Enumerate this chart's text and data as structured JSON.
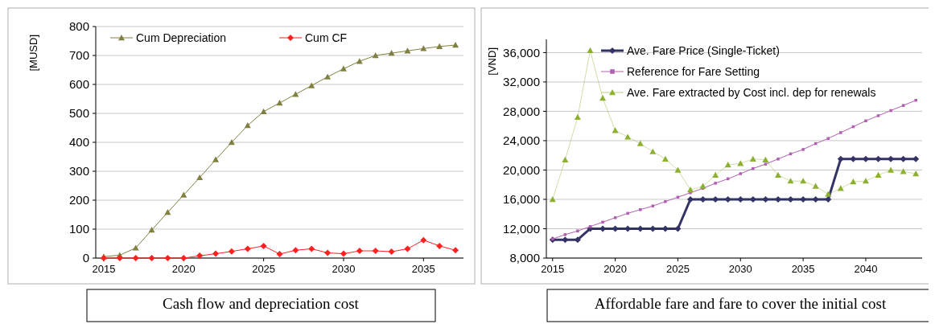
{
  "chart_data": [
    {
      "type": "line",
      "title": "Cash flow and depreciation cost",
      "ylabel": "[MUSD]",
      "x": [
        2015,
        2016,
        2017,
        2018,
        2019,
        2020,
        2021,
        2022,
        2023,
        2024,
        2025,
        2026,
        2027,
        2028,
        2029,
        2030,
        2031,
        2032,
        2033,
        2034,
        2035,
        2036,
        2037
      ],
      "xlim": [
        2014.5,
        2037.5
      ],
      "xticks": [
        2015,
        2020,
        2025,
        2030,
        2035
      ],
      "ylim": [
        0,
        800
      ],
      "yticks": [
        0,
        100,
        200,
        300,
        400,
        500,
        600,
        700,
        800
      ],
      "grid": "y",
      "legend": "top",
      "series": [
        {
          "name": "Cum Depreciation",
          "color": "#808040",
          "marker": "triangle",
          "values": [
            5,
            10,
            35,
            97,
            158,
            218,
            278,
            340,
            400,
            458,
            506,
            536,
            566,
            596,
            626,
            654,
            680,
            700,
            708,
            716,
            724,
            731,
            736
          ]
        },
        {
          "name": "Cum CF",
          "color": "#ff2020",
          "marker": "diamond",
          "values": [
            0,
            0,
            0,
            0,
            0,
            0,
            8,
            15,
            23,
            32,
            42,
            14,
            27,
            32,
            18,
            15,
            25,
            25,
            22,
            32,
            62,
            42,
            27
          ]
        }
      ]
    },
    {
      "type": "line",
      "title": "Affordable fare and fare to cover the initial cost",
      "ylabel": "[VND]",
      "x": [
        2015,
        2016,
        2017,
        2018,
        2019,
        2020,
        2021,
        2022,
        2023,
        2024,
        2025,
        2026,
        2027,
        2028,
        2029,
        2030,
        2031,
        2032,
        2033,
        2034,
        2035,
        2036,
        2037,
        2038,
        2039,
        2040,
        2041,
        2042,
        2043,
        2044
      ],
      "xlim": [
        2014.5,
        2044.5
      ],
      "xticks": [
        2015,
        2020,
        2025,
        2030,
        2035,
        2040
      ],
      "ylim": [
        8000,
        37800
      ],
      "yticks": [
        {
          "value": 8000,
          "label": "8,000"
        },
        {
          "value": 12000,
          "label": "12,000"
        },
        {
          "value": 16000,
          "label": "16,000"
        },
        {
          "value": 20000,
          "label": "20,000"
        },
        {
          "value": 24000,
          "label": "24,000"
        },
        {
          "value": 28000,
          "label": "28,000"
        },
        {
          "value": 32000,
          "label": "32,000"
        },
        {
          "value": 36000,
          "label": "36,000"
        }
      ],
      "grid": "y",
      "legend": "top left",
      "series": [
        {
          "name": "Ave. Fare Price (Single-Ticket)",
          "color": "#333366",
          "marker": "diamond",
          "values": [
            10500,
            10500,
            10500,
            12000,
            12000,
            12000,
            12000,
            12000,
            12000,
            12000,
            12000,
            16000,
            16000,
            16000,
            16000,
            16000,
            16000,
            16000,
            16000,
            16000,
            16000,
            16000,
            16000,
            21500,
            21500,
            21500,
            21500,
            21500,
            21500,
            21500
          ]
        },
        {
          "name": "Reference for Fare Setting",
          "color": "#b060b0",
          "marker": "square",
          "values": [
            10600,
            11200,
            11700,
            12300,
            12900,
            13500,
            14100,
            14600,
            15100,
            15700,
            16300,
            16900,
            17500,
            18200,
            18800,
            19500,
            20200,
            20800,
            21500,
            22200,
            22800,
            23600,
            24300,
            25100,
            25900,
            26700,
            27400,
            28100,
            28800,
            29500
          ]
        },
        {
          "name": "Ave. Fare extracted by Cost incl. dep for renewals",
          "color": "#8cb030",
          "marker": "triangle",
          "values": [
            16000,
            21400,
            27200,
            36300,
            29800,
            25400,
            24500,
            23600,
            22500,
            21500,
            20000,
            17300,
            17800,
            19300,
            20700,
            20900,
            21500,
            21400,
            19300,
            18500,
            18500,
            17800,
            16700,
            17500,
            18400,
            18500,
            19300,
            20000,
            19800,
            19500
          ]
        }
      ]
    }
  ]
}
